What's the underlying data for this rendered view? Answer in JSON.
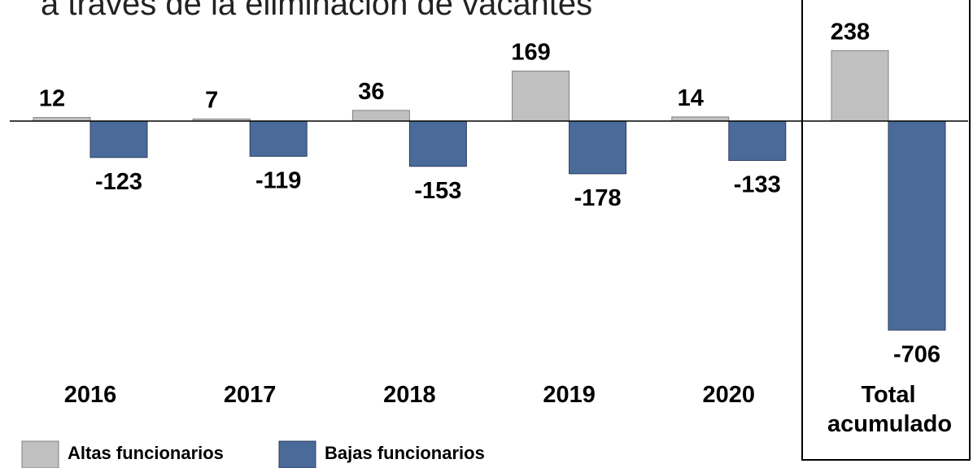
{
  "chart_data": {
    "type": "bar",
    "title": "a través de la eliminación de vacantes",
    "categories": [
      "2016",
      "2017",
      "2018",
      "2019",
      "2020",
      "Total acumulado"
    ],
    "series": [
      {
        "name": "Altas funcionarios",
        "color": "#c0c0c0",
        "values": [
          12,
          7,
          36,
          169,
          14,
          238
        ]
      },
      {
        "name": "Bajas funcionarios",
        "color": "#4a6a9a",
        "values": [
          -123,
          -119,
          -153,
          -178,
          -133,
          -706
        ]
      }
    ],
    "legend": "bottom-left"
  }
}
